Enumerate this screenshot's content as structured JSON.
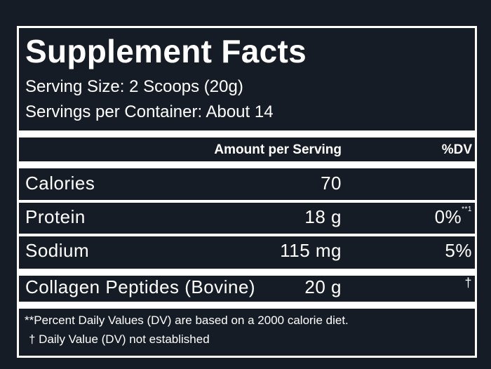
{
  "header": {
    "title": "Supplement Facts",
    "serving_size": "Serving Size: 2 Scoops (20g)",
    "servings_per_container": "Servings per Container: About 14"
  },
  "table": {
    "headers": [
      "Amount per Serving",
      "%DV"
    ],
    "rows": [
      {
        "name": "Calories",
        "amount": "70"
      },
      {
        "name": "Protein",
        "amount": "18 g",
        "dv": "0%",
        "dv_note": "**1"
      },
      {
        "name": "Sodium",
        "amount": "115 mg",
        "dv": "5%"
      },
      {
        "name": "Collagen Peptides (Bovine)",
        "amount": "20 g",
        "dv": "†"
      }
    ]
  },
  "footnotes": [
    "**Percent Daily Values (DV) are based on a 2000 calorie diet.",
    "† Daily Value (DV) not established"
  ]
}
